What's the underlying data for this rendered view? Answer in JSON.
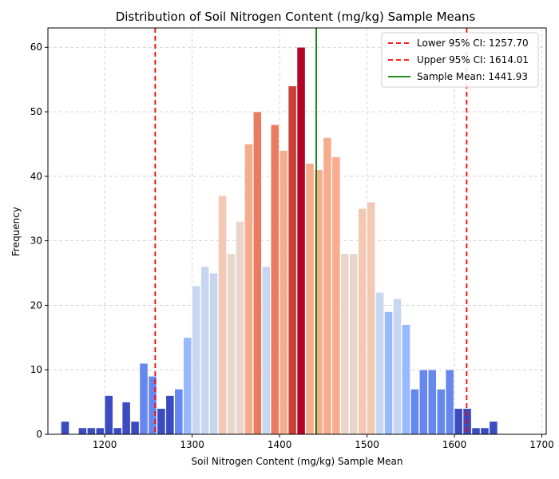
{
  "chart_data": {
    "type": "bar",
    "title": "Distribution of Soil Nitrogen Content (mg/kg) Sample Means",
    "xlabel": "Soil Nitrogen Content (mg/kg) Sample Mean",
    "ylabel": "Frequency",
    "xlim": [
      1135,
      1705
    ],
    "ylim": [
      0,
      63
    ],
    "xticks": [
      1200,
      1300,
      1400,
      1500,
      1600,
      1700
    ],
    "yticks": [
      0,
      10,
      20,
      30,
      40,
      50,
      60
    ],
    "grid": true,
    "legend_position": "top-right",
    "bin_width": 10,
    "bin_starts": [
      1150,
      1160,
      1170,
      1180,
      1190,
      1200,
      1210,
      1220,
      1230,
      1240,
      1250,
      1260,
      1270,
      1280,
      1290,
      1300,
      1310,
      1320,
      1330,
      1340,
      1350,
      1360,
      1370,
      1380,
      1390,
      1400,
      1410,
      1420,
      1430,
      1440,
      1450,
      1460,
      1470,
      1480,
      1490,
      1500,
      1510,
      1520,
      1530,
      1540,
      1550,
      1560,
      1570,
      1580,
      1590,
      1600,
      1610,
      1620,
      1630,
      1640,
      1650,
      1660,
      1670,
      1680
    ],
    "values": [
      2,
      0,
      1,
      1,
      1,
      6,
      1,
      5,
      2,
      11,
      9,
      4,
      6,
      7,
      15,
      23,
      26,
      25,
      37,
      28,
      33,
      45,
      50,
      26,
      48,
      44,
      54,
      60,
      42,
      41,
      46,
      43,
      28,
      28,
      35,
      36,
      22,
      19,
      21,
      17,
      7,
      10,
      10,
      7,
      10,
      4,
      4,
      1,
      1,
      2,
      0,
      0,
      0,
      0
    ],
    "bar_colors": [
      "#3b4cc0",
      "#4358cb",
      "#4b64d5",
      "#5470de",
      "#5d7ce6",
      "#6687ed",
      "#7093f3",
      "#7a9df8",
      "#84a7fc",
      "#8db0fe",
      "#98b9ff",
      "#a2c1ff",
      "#acc8fc",
      "#b6cefa",
      "#bfd3f6",
      "#c8d7f1",
      "#d1dae9",
      "#d9dce1",
      "#e0dbd6",
      "#e8d6cc",
      "#eed0c0",
      "#f2c9b4",
      "#f5c0a7",
      "#f7b79b",
      "#f7ac8e",
      "#f6a182",
      "#f39577",
      "#ef886b",
      "#ea7b60",
      "#e46e56",
      "#dd5f4b",
      "#d55042",
      "#cc403a",
      "#c13133",
      "#b40426",
      "#b40426",
      "#b40426",
      "#b40426",
      "#b40426",
      "#b40426",
      "#b40426",
      "#b40426",
      "#b40426",
      "#b40426",
      "#b40426",
      "#b40426",
      "#b40426",
      "#b40426",
      "#b40426",
      "#b40426",
      "#b40426",
      "#b40426",
      "#b40426",
      "#b40426"
    ],
    "lines": [
      {
        "name": "Lower 95% CI: 1257.70",
        "x": 1257.7,
        "color": "#ff0000",
        "style": "dashed"
      },
      {
        "name": "Upper 95% CI: 1614.01",
        "x": 1614.01,
        "color": "#ff0000",
        "style": "dashed"
      },
      {
        "name": "Sample Mean: 1441.93",
        "x": 1441.93,
        "color": "#008000",
        "style": "solid"
      }
    ]
  }
}
